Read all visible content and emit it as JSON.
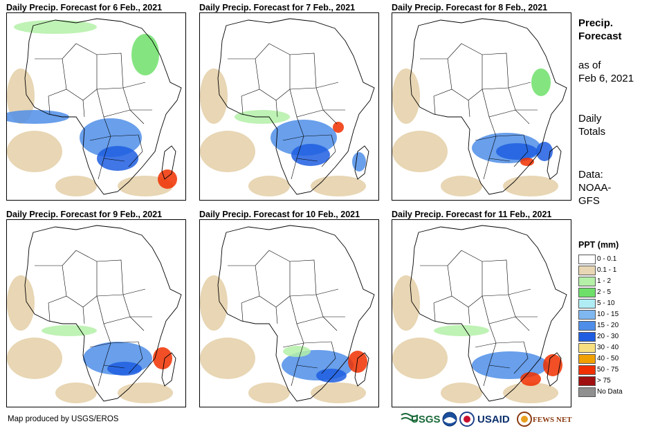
{
  "panels": [
    {
      "title": "Daily Precip. Forecast for 6 Feb., 2021"
    },
    {
      "title": "Daily Precip. Forecast for 7 Feb., 2021"
    },
    {
      "title": "Daily Precip. Forecast for 8 Feb., 2021"
    },
    {
      "title": "Daily Precip. Forecast for 9 Feb., 2021"
    },
    {
      "title": "Daily Precip. Forecast for 10 Feb., 2021"
    },
    {
      "title": "Daily Precip. Forecast for 11 Feb., 2021"
    }
  ],
  "side": {
    "title_line1": "Precip.",
    "title_line2": "Forecast",
    "asof_line1": "as of",
    "asof_line2": "Feb 6, 2021",
    "totals_line1": "Daily",
    "totals_line2": "Totals",
    "data_line1": "Data:",
    "data_line2": "NOAA-",
    "data_line3": "GFS"
  },
  "legend": {
    "title": "PPT (mm)",
    "items": [
      {
        "label": "0 - 0.1",
        "color": "#ffffff"
      },
      {
        "label": "0.1 - 1",
        "color": "#e8d6b4"
      },
      {
        "label": "1 - 2",
        "color": "#b4f0a8"
      },
      {
        "label": "2 - 5",
        "color": "#6ee06a"
      },
      {
        "label": "5 - 10",
        "color": "#b0ecf4"
      },
      {
        "label": "10 - 15",
        "color": "#7fb8f0"
      },
      {
        "label": "15 - 20",
        "color": "#4f8ee8"
      },
      {
        "label": "20 - 30",
        "color": "#1f5ee0"
      },
      {
        "label": "30 - 40",
        "color": "#f8e080"
      },
      {
        "label": "40 - 50",
        "color": "#f0a000"
      },
      {
        "label": "50 - 75",
        "color": "#f03000"
      },
      {
        "label": "> 75",
        "color": "#a01010"
      },
      {
        "label": "No Data",
        "color": "#909090"
      }
    ]
  },
  "credit": "Map produced by USGS/EROS",
  "logos": {
    "usgs": "USGS",
    "usaid": "USAID",
    "fewsnet": "FEWS NET"
  }
}
